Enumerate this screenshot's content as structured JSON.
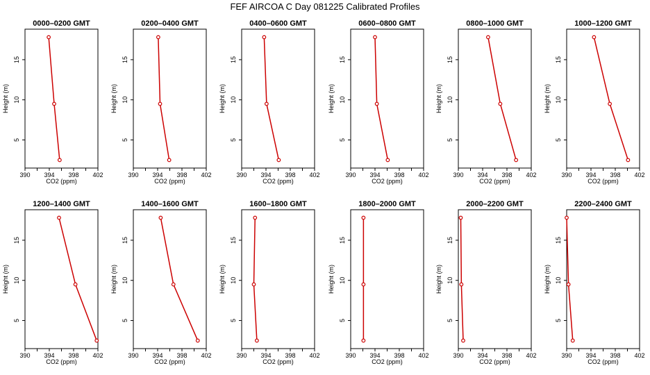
{
  "title": "FEF AIRCOA C  Day 081225  Calibrated Profiles",
  "chart_data": {
    "type": "line",
    "layout": "2 rows x 6 panels",
    "xlabel": "CO2 (ppm)",
    "ylabel": "Height (m)",
    "xlim": [
      390,
      402
    ],
    "ylim": [
      1.5,
      18.8
    ],
    "xticks": [
      390,
      392,
      394,
      396,
      398,
      400,
      402
    ],
    "xtick_labels": [
      "390",
      "394",
      "398",
      "402"
    ],
    "yticks": [
      5,
      10,
      15
    ],
    "ytick_labels": [
      "5",
      "10",
      "15"
    ],
    "grid": false,
    "legend": "none",
    "line_color": "#cc0000",
    "marker": "open-circle",
    "heights": [
      2.5,
      9.5,
      17.8
    ],
    "panels": [
      {
        "title": "0000–0200 GMT",
        "co2": [
          395.7,
          394.8,
          393.9
        ]
      },
      {
        "title": "0200–0400 GMT",
        "co2": [
          395.9,
          394.4,
          394.1
        ]
      },
      {
        "title": "0400–0600 GMT",
        "co2": [
          396.1,
          394.1,
          393.7
        ]
      },
      {
        "title": "0600–0800 GMT",
        "co2": [
          396.1,
          394.3,
          394.0
        ]
      },
      {
        "title": "0800–1000 GMT",
        "co2": [
          399.5,
          396.9,
          394.9
        ]
      },
      {
        "title": "1000–1200 GMT",
        "co2": [
          400.1,
          397.1,
          394.5
        ]
      },
      {
        "title": "1200–1400 GMT",
        "co2": [
          401.8,
          398.3,
          395.6
        ]
      },
      {
        "title": "1400–1600 GMT",
        "co2": [
          400.6,
          396.6,
          394.5
        ]
      },
      {
        "title": "1600–1800 GMT",
        "co2": [
          392.5,
          392.0,
          392.2
        ]
      },
      {
        "title": "1800–2000 GMT",
        "co2": [
          392.1,
          392.1,
          392.1
        ]
      },
      {
        "title": "2000–2200 GMT",
        "co2": [
          390.8,
          390.5,
          390.4
        ]
      },
      {
        "title": "2200–2400 GMT",
        "co2": [
          391.0,
          390.3,
          390.0
        ]
      }
    ]
  }
}
